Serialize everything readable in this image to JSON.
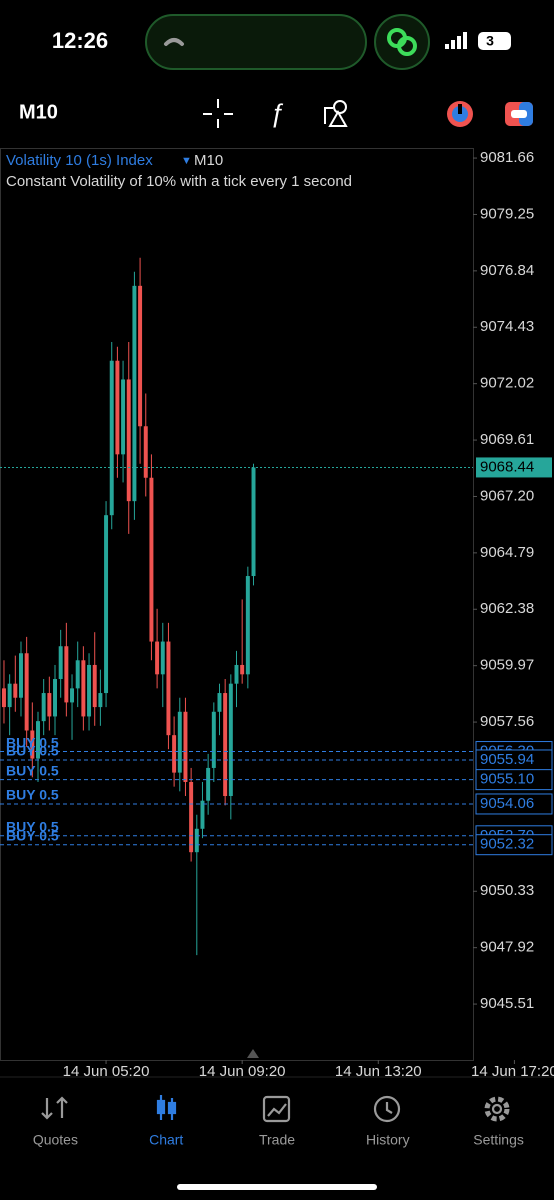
{
  "status_bar": {
    "time": "12:26",
    "battery": "3"
  },
  "toolbar": {
    "timeframe": "M10"
  },
  "chart_data": {
    "type": "candlestick",
    "title": "Volatility 10 (1s) Index",
    "timeframe": "M10",
    "subtitle": "Constant Volatility of 10% with a tick every 1 second",
    "x": [
      0,
      1,
      2,
      3,
      4,
      5,
      6,
      7,
      8,
      9,
      10,
      11,
      12,
      13,
      14,
      15,
      16,
      17,
      18,
      19,
      20,
      21,
      22,
      23,
      24,
      25,
      26,
      27,
      28,
      29,
      30,
      31,
      32,
      33,
      34,
      35,
      36,
      37,
      38,
      39,
      40,
      41,
      42,
      43,
      44
    ],
    "open": [
      9059.0,
      9058.2,
      9059.2,
      9058.6,
      9060.5,
      9057.2,
      9056.0,
      9057.6,
      9058.8,
      9057.8,
      9059.4,
      9060.8,
      9058.4,
      9059.0,
      9060.2,
      9057.8,
      9060.0,
      9058.2,
      9058.8,
      9066.4,
      9073.0,
      9069.0,
      9072.2,
      9067.0,
      9076.2,
      9070.2,
      9068.0,
      9061.0,
      9059.6,
      9061.0,
      9057.0,
      9055.4,
      9058.0,
      9055.0,
      9052.0,
      9053.0,
      9054.2,
      9055.6,
      9058.0,
      9058.8,
      9054.4,
      9059.2,
      9060.0,
      9059.6,
      9063.8
    ],
    "high": [
      9060.2,
      9059.6,
      9060.4,
      9061.0,
      9061.2,
      9058.4,
      9058.0,
      9059.4,
      9059.5,
      9060.0,
      9061.5,
      9061.8,
      9059.6,
      9061.0,
      9060.8,
      9060.5,
      9061.4,
      9059.8,
      9067.0,
      9073.8,
      9073.6,
      9073.0,
      9073.8,
      9076.8,
      9077.4,
      9071.6,
      9069.0,
      9062.4,
      9061.8,
      9061.8,
      9057.8,
      9058.6,
      9058.6,
      9055.6,
      9053.6,
      9055.0,
      9056.2,
      9058.4,
      9059.2,
      9059.4,
      9059.6,
      9060.6,
      9062.8,
      9064.2,
      9068.6
    ],
    "low": [
      9057.5,
      9057.0,
      9058.0,
      9057.8,
      9056.5,
      9055.2,
      9055.0,
      9057.0,
      9057.2,
      9057.0,
      9058.6,
      9057.8,
      9056.8,
      9058.2,
      9057.2,
      9057.2,
      9057.4,
      9057.4,
      9058.2,
      9065.8,
      9068.0,
      9067.8,
      9065.6,
      9066.2,
      9068.6,
      9067.2,
      9060.2,
      9059.0,
      9058.2,
      9056.4,
      9054.8,
      9054.6,
      9054.4,
      9051.6,
      9047.6,
      9052.6,
      9053.6,
      9055.0,
      9057.0,
      9054.0,
      9053.4,
      9058.2,
      9059.2,
      9059.0,
      9063.4
    ],
    "close": [
      9058.2,
      9059.2,
      9058.6,
      9060.5,
      9057.2,
      9056.0,
      9057.6,
      9058.8,
      9057.8,
      9059.4,
      9060.8,
      9058.4,
      9059.0,
      9060.2,
      9057.8,
      9060.0,
      9058.2,
      9058.8,
      9066.4,
      9073.0,
      9069.0,
      9072.2,
      9067.0,
      9076.2,
      9070.2,
      9068.0,
      9061.0,
      9059.6,
      9061.0,
      9057.0,
      9055.4,
      9058.0,
      9055.0,
      9052.0,
      9053.0,
      9054.2,
      9055.6,
      9058.0,
      9058.8,
      9054.4,
      9059.2,
      9060.0,
      9059.6,
      9063.8,
      9068.44
    ],
    "up_color": "#26a69a",
    "down_color": "#ef5350",
    "xlim": [
      -0.7,
      82.7
    ],
    "xticks": [
      {
        "value": 18,
        "label": "14 Jun 05:20"
      },
      {
        "value": 42,
        "label": "14 Jun 09:20"
      },
      {
        "value": 66,
        "label": "14 Jun 13:20"
      },
      {
        "value": 90,
        "label": "14 Jun 17:20"
      }
    ],
    "ylim": [
      9043.12,
      9082.09
    ],
    "yticks": [
      9081.66,
      9079.25,
      9076.84,
      9074.43,
      9072.02,
      9069.61,
      {
        "value": 9067.2,
        "label": "9067.20"
      },
      9064.79,
      9062.38,
      9059.97,
      9057.56,
      9050.33,
      9047.92,
      9045.51
    ],
    "current_price": 9068.44,
    "current_price_color": "#26a69a",
    "order_color": "#2f7de1",
    "orders": [
      {
        "label": "BUY 0.5",
        "price": 9056.3,
        "price_label": "9056.30"
      },
      {
        "label": "BUY 0.5",
        "price": 9055.94,
        "price_label": "9055.94"
      },
      {
        "label": "BUY 0.5",
        "price": 9055.1,
        "price_label": "9055.10"
      },
      {
        "label": "BUY 0.5",
        "price": 9054.06,
        "price_label": "9054.06"
      },
      {
        "label": "BUY 0.5",
        "price": 9052.7,
        "price_label": "9052.70"
      },
      {
        "label": "BUY 0.5",
        "price": 9052.32,
        "price_label": "9052.32"
      }
    ]
  },
  "tab_bar": {
    "tabs": [
      "Quotes",
      "Chart",
      "Trade",
      "History",
      "Settings"
    ],
    "active": 1
  }
}
